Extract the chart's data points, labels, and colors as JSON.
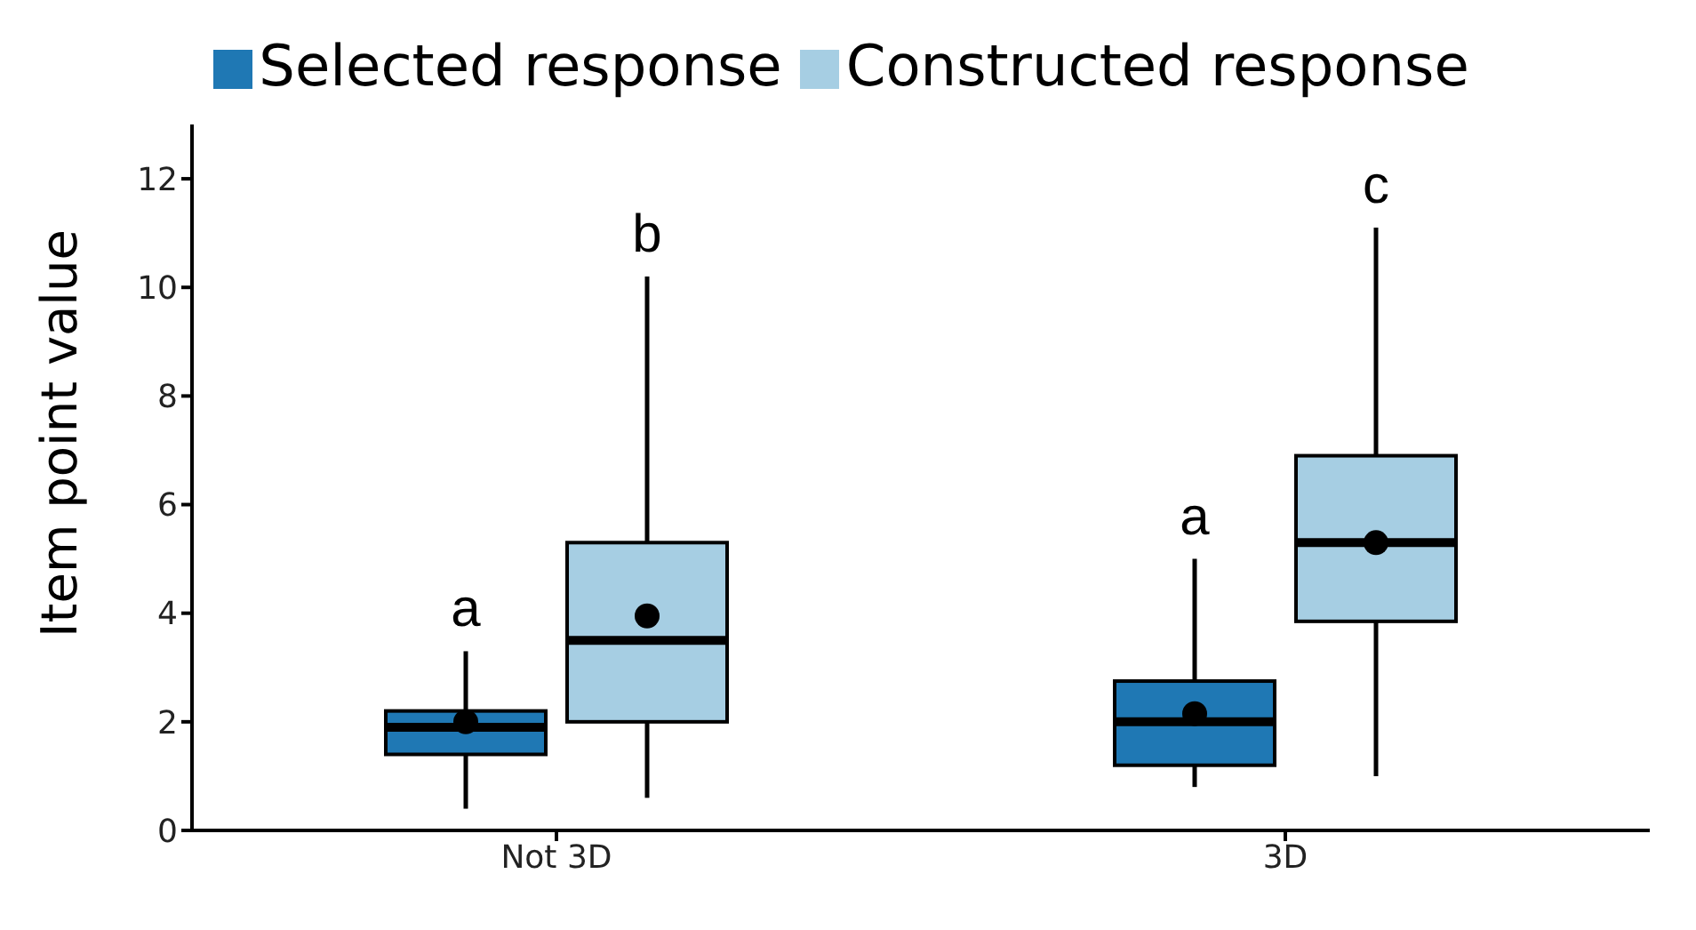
{
  "chart_data": {
    "type": "box",
    "ylabel": "Item point value",
    "categories": [
      "Not 3D",
      "3D"
    ],
    "series": [
      {
        "name": "Selected response",
        "color": "#1f78b4",
        "boxes": [
          {
            "low": 0.4,
            "q1": 1.4,
            "median": 1.9,
            "q3": 2.2,
            "high": 3.3,
            "mean": 2.0
          },
          {
            "low": 0.8,
            "q1": 1.2,
            "median": 2.0,
            "q3": 2.75,
            "high": 5.0,
            "mean": 2.15
          }
        ]
      },
      {
        "name": "Constructed response",
        "color": "#a6cee3",
        "boxes": [
          {
            "low": 0.6,
            "q1": 2.0,
            "median": 3.5,
            "q3": 5.3,
            "high": 10.2,
            "mean": 3.95
          },
          {
            "low": 1.0,
            "q1": 3.85,
            "median": 5.3,
            "q3": 6.9,
            "high": 11.1,
            "mean": 5.3
          }
        ]
      }
    ],
    "annotations": [
      "a",
      "b",
      "a",
      "c"
    ],
    "ylim": [
      0,
      13
    ],
    "yticks": [
      0,
      2,
      4,
      6,
      8,
      10,
      12
    ],
    "grid": false,
    "legend": "top"
  }
}
